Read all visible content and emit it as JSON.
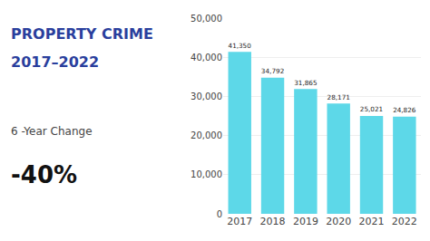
{
  "chart_data": {
    "type": "bar",
    "title": "PROPERTY CRIME",
    "subtitle": "2017–2022",
    "annotations": [
      "6 -Year Change",
      "-40%"
    ],
    "categories": [
      "2017",
      "2018",
      "2019",
      "2020",
      "2021",
      "2022"
    ],
    "values": [
      41350,
      34792,
      31865,
      28171,
      25021,
      24826
    ],
    "value_labels": [
      "41,350",
      "34,792",
      "31,865",
      "28,171",
      "25,021",
      "24,826"
    ],
    "data_labels": true,
    "color": "#5DD8E8",
    "ylim": [
      0,
      50000
    ],
    "yticks": [
      0,
      {
        "value": 10000,
        "label": "10,000"
      },
      {
        "value": 20000,
        "label": "20,000"
      },
      {
        "value": 30000,
        "label": "30,000"
      },
      {
        "value": 40000,
        "label": "40,000"
      },
      {
        "value": 50000,
        "label": "50,000"
      }
    ],
    "grid": true
  }
}
